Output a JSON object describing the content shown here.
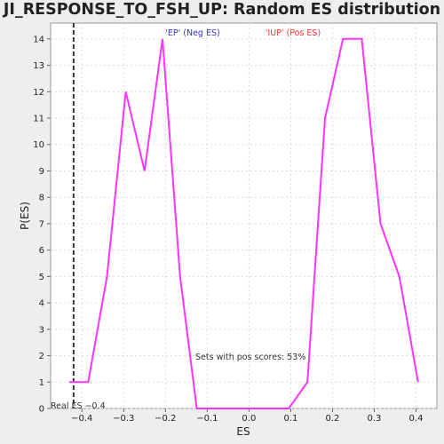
{
  "chart_data": {
    "type": "line",
    "title": "JI_RESPONSE_TO_FSH_UP: Random ES distribution",
    "xlabel": "ES",
    "ylabel": "P(ES)",
    "xlim": [
      -0.475,
      0.45
    ],
    "ylim": [
      0,
      14.6
    ],
    "x_ticks": [
      -0.4,
      -0.3,
      -0.2,
      -0.1,
      0.0,
      0.1,
      0.2,
      0.3,
      0.4
    ],
    "x_tick_labels": [
      "−0.4",
      "−0.3",
      "−0.2",
      "−0.1",
      "0.0",
      "0.1",
      "0.2",
      "0.3",
      "0.4"
    ],
    "y_ticks": [
      0,
      1,
      2,
      3,
      4,
      5,
      6,
      7,
      8,
      9,
      10,
      11,
      12,
      13,
      14
    ],
    "y_tick_labels": [
      "0",
      "1",
      "2",
      "3",
      "4",
      "5",
      "6",
      "7",
      "8",
      "9",
      "10",
      "11",
      "12",
      "13",
      "14"
    ],
    "grid": true,
    "series": [
      {
        "color": "#ff33ff",
        "x": [
          -0.43,
          -0.42,
          -0.385,
          -0.34,
          -0.295,
          -0.25,
          -0.207,
          -0.165,
          -0.125,
          -0.08,
          -0.04,
          0.0,
          0.05,
          0.095,
          0.14,
          0.182,
          0.225,
          0.27,
          0.315,
          0.36,
          0.405
        ],
        "y": [
          1,
          1,
          1,
          5,
          12,
          9,
          14,
          5,
          0,
          0,
          0,
          0,
          0,
          0,
          1,
          11,
          14,
          14,
          7,
          5,
          1
        ]
      }
    ],
    "real_es": -0.42,
    "annotations": {
      "neg_label": "'EP' (Neg ES)",
      "neg_color": "#3333cc",
      "pos_label": "'IUP' (Pos ES)",
      "pos_color": "#ff3333",
      "pos_scores_text": "Sets with pos scores: 53%",
      "real_es_text": "Real ES −0.4"
    }
  }
}
